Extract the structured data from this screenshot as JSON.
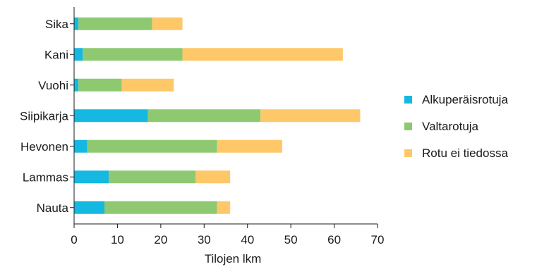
{
  "chart_data": {
    "type": "bar",
    "orientation": "horizontal",
    "stacked": true,
    "categories": [
      "Nauta",
      "Lammas",
      "Hevonen",
      "Siipikarja",
      "Vuohi",
      "Kani",
      "Sika"
    ],
    "series": [
      {
        "name": "Alkuperäisrotuja",
        "color": "#14b8e0",
        "values": [
          7,
          8,
          3,
          17,
          1,
          2,
          1
        ]
      },
      {
        "name": "Valtarotuja",
        "color": "#8ec972",
        "values": [
          26,
          20,
          30,
          26,
          10,
          23,
          17
        ]
      },
      {
        "name": "Rotu ei tiedossa",
        "color": "#fec868",
        "values": [
          3,
          8,
          15,
          23,
          12,
          37,
          7
        ]
      }
    ],
    "xlabel": "Tilojen lkm",
    "ylabel": "",
    "title": "",
    "xlim": [
      0,
      70
    ],
    "xticks": [
      0,
      10,
      20,
      30,
      40,
      50,
      60,
      70
    ],
    "tick_labels": [
      "0",
      "10",
      "20",
      "30",
      "40",
      "50",
      "60",
      "70"
    ],
    "grid": false,
    "legend_position": "right"
  }
}
